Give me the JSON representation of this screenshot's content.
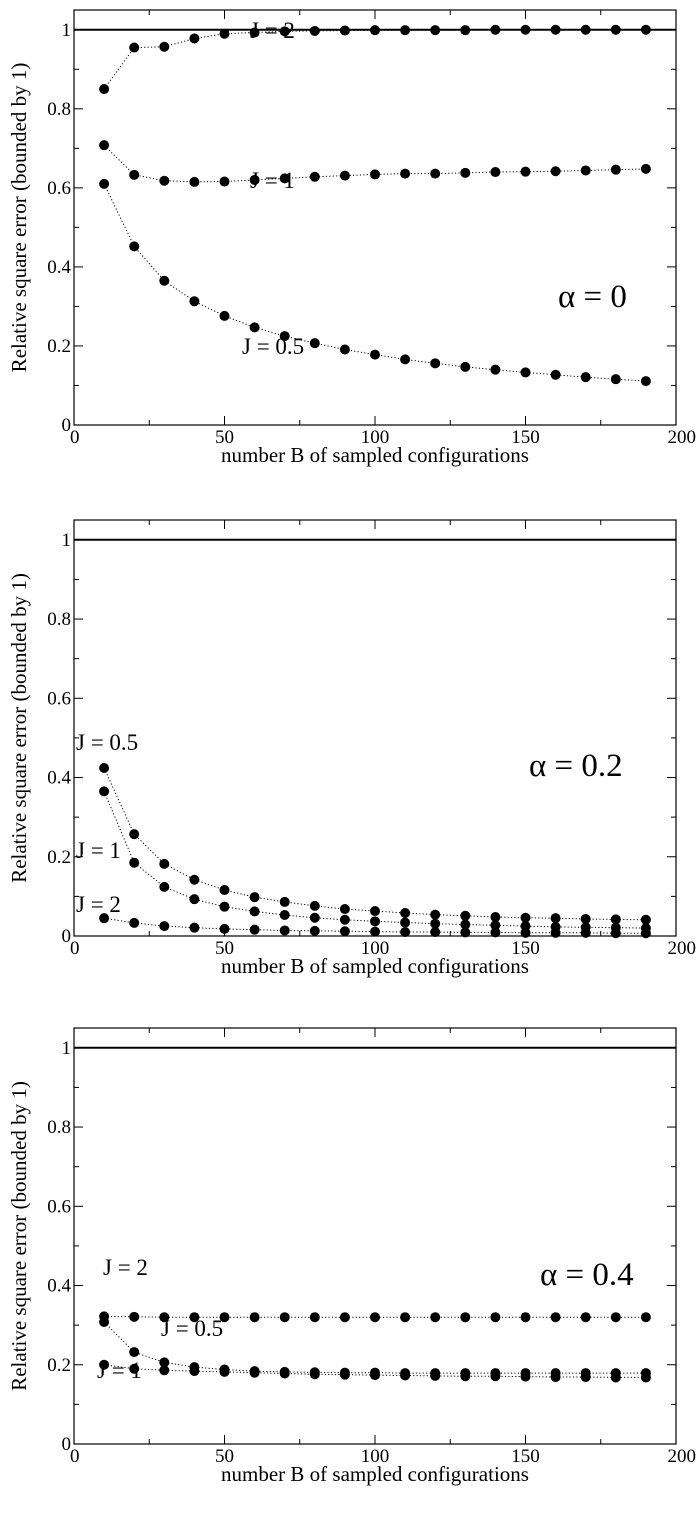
{
  "chart_data": [
    {
      "type": "scatter",
      "title": "",
      "xlabel": "number B of sampled configurations",
      "ylabel": "Relative square error (bounded by 1)",
      "xlim": [
        0,
        200
      ],
      "ylim": [
        0,
        1.05
      ],
      "x_ticks": [
        "0",
        "50",
        "100",
        "150",
        "200"
      ],
      "y_ticks": [
        "0",
        "0.2",
        "0.4",
        "0.6",
        "0.8",
        "1"
      ],
      "reference_line": 1,
      "annotation": "α = 0",
      "x": [
        10,
        20,
        30,
        40,
        50,
        60,
        70,
        80,
        90,
        100,
        110,
        120,
        130,
        140,
        150,
        160,
        170,
        180,
        190
      ],
      "series": [
        {
          "name": "J = 2",
          "values": [
            0.85,
            0.955,
            0.957,
            0.978,
            0.99,
            0.993,
            0.996,
            0.997,
            0.998,
            0.999,
            0.999,
            0.999,
            0.999,
            1.0,
            1.0,
            1.0,
            1.0,
            1.0,
            1.0
          ]
        },
        {
          "name": "J = 1",
          "values": [
            0.708,
            0.633,
            0.618,
            0.615,
            0.616,
            0.62,
            0.624,
            0.628,
            0.631,
            0.634,
            0.636,
            0.636,
            0.638,
            0.64,
            0.641,
            0.642,
            0.644,
            0.646,
            0.648
          ]
        },
        {
          "name": "J = 0.5",
          "values": [
            0.61,
            0.452,
            0.365,
            0.313,
            0.276,
            0.247,
            0.225,
            0.207,
            0.191,
            0.178,
            0.166,
            0.156,
            0.147,
            0.14,
            0.133,
            0.127,
            0.121,
            0.116,
            0.111
          ]
        }
      ]
    },
    {
      "type": "scatter",
      "title": "",
      "xlabel": "number B of sampled configurations",
      "ylabel": "Relative square error (bounded by 1)",
      "xlim": [
        0,
        200
      ],
      "ylim": [
        0,
        1.05
      ],
      "x_ticks": [
        "0",
        "50",
        "100",
        "150",
        "200"
      ],
      "y_ticks": [
        "0",
        "0.2",
        "0.4",
        "0.6",
        "0.8",
        "1"
      ],
      "reference_line": 1,
      "annotation": "α = 0.2",
      "x": [
        10,
        20,
        30,
        40,
        50,
        60,
        70,
        80,
        90,
        100,
        110,
        120,
        130,
        140,
        150,
        160,
        170,
        180,
        190
      ],
      "series": [
        {
          "name": "J = 0.5",
          "values": [
            0.424,
            0.257,
            0.182,
            0.142,
            0.116,
            0.098,
            0.086,
            0.076,
            0.068,
            0.063,
            0.058,
            0.054,
            0.051,
            0.048,
            0.046,
            0.045,
            0.043,
            0.042,
            0.041
          ]
        },
        {
          "name": "J = 1",
          "values": [
            0.365,
            0.185,
            0.124,
            0.093,
            0.074,
            0.062,
            0.053,
            0.046,
            0.041,
            0.037,
            0.034,
            0.031,
            0.029,
            0.027,
            0.025,
            0.023,
            0.022,
            0.021,
            0.02
          ]
        },
        {
          "name": "J = 2",
          "values": [
            0.045,
            0.033,
            0.025,
            0.021,
            0.018,
            0.016,
            0.014,
            0.013,
            0.012,
            0.011,
            0.01,
            0.01,
            0.009,
            0.009,
            0.008,
            0.008,
            0.008,
            0.007,
            0.007
          ]
        }
      ]
    },
    {
      "type": "scatter",
      "title": "",
      "xlabel": "number B of sampled configurations",
      "ylabel": "Relative square error (bounded by 1)",
      "xlim": [
        0,
        200
      ],
      "ylim": [
        0,
        1.05
      ],
      "x_ticks": [
        "0",
        "50",
        "100",
        "150",
        "200"
      ],
      "y_ticks": [
        "0",
        "0.2",
        "0.4",
        "0.6",
        "0.8",
        "1"
      ],
      "reference_line": 1,
      "annotation": "α = 0.4",
      "x": [
        10,
        20,
        30,
        40,
        50,
        60,
        70,
        80,
        90,
        100,
        110,
        120,
        130,
        140,
        150,
        160,
        170,
        180,
        190
      ],
      "series": [
        {
          "name": "J = 2",
          "values": [
            0.322,
            0.321,
            0.32,
            0.32,
            0.32,
            0.32,
            0.32,
            0.32,
            0.32,
            0.32,
            0.32,
            0.32,
            0.32,
            0.32,
            0.32,
            0.32,
            0.32,
            0.32,
            0.32
          ]
        },
        {
          "name": "J = 0.5",
          "values": [
            0.308,
            0.232,
            0.206,
            0.194,
            0.188,
            0.184,
            0.182,
            0.181,
            0.18,
            0.18,
            0.179,
            0.179,
            0.179,
            0.179,
            0.179,
            0.179,
            0.179,
            0.179,
            0.179
          ]
        },
        {
          "name": "J = 1",
          "values": [
            0.2,
            0.19,
            0.186,
            0.184,
            0.182,
            0.18,
            0.178,
            0.176,
            0.175,
            0.174,
            0.173,
            0.172,
            0.171,
            0.171,
            0.17,
            0.169,
            0.169,
            0.168,
            0.168
          ]
        }
      ]
    }
  ]
}
